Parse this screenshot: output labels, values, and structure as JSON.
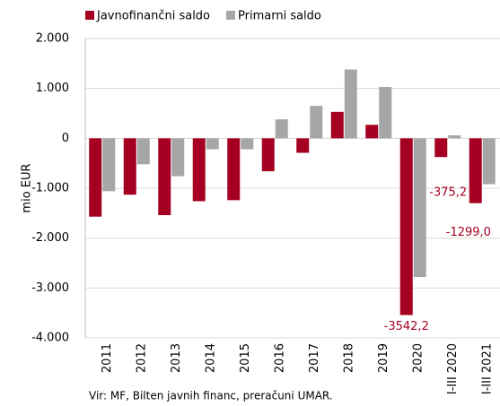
{
  "chart_data": {
    "type": "bar",
    "categories": [
      "2011",
      "2012",
      "2013",
      "2014",
      "2015",
      "2016",
      "2017",
      "2018",
      "2019",
      "2020",
      "I-III 2020",
      "I-III 2021"
    ],
    "series": [
      {
        "name": "Javnofinančni saldo",
        "color": "#a50021",
        "values": [
          -1570,
          -1130,
          -1540,
          -1260,
          -1240,
          -660,
          -290,
          530,
          270,
          -3542.2,
          -375.2,
          -1299.0
        ],
        "value_labels": [
          null,
          null,
          null,
          null,
          null,
          null,
          null,
          null,
          null,
          "-3542,2",
          "-375,2",
          "-1299,0"
        ]
      },
      {
        "name": "Primarni saldo",
        "color": "#a6a6a6",
        "values": [
          -1060,
          -520,
          -760,
          -220,
          -220,
          380,
          650,
          1380,
          1030,
          -2780,
          60,
          -920
        ]
      }
    ],
    "y_label": "mio EUR",
    "source": "Vir: MF, Bilten javnih financ, preračuni UMAR.",
    "ylim": [
      -4000,
      2000
    ],
    "yticks": [
      {
        "value": -4000,
        "label": "-4.000"
      },
      {
        "value": -3000,
        "label": "-3.000"
      },
      {
        "value": -2000,
        "label": "-2.000"
      },
      {
        "value": -1000,
        "label": "-1.000"
      },
      0,
      {
        "value": 1000,
        "label": "1.000"
      },
      {
        "value": 2000,
        "label": "2.000"
      }
    ],
    "grid": true,
    "legend": "top"
  }
}
